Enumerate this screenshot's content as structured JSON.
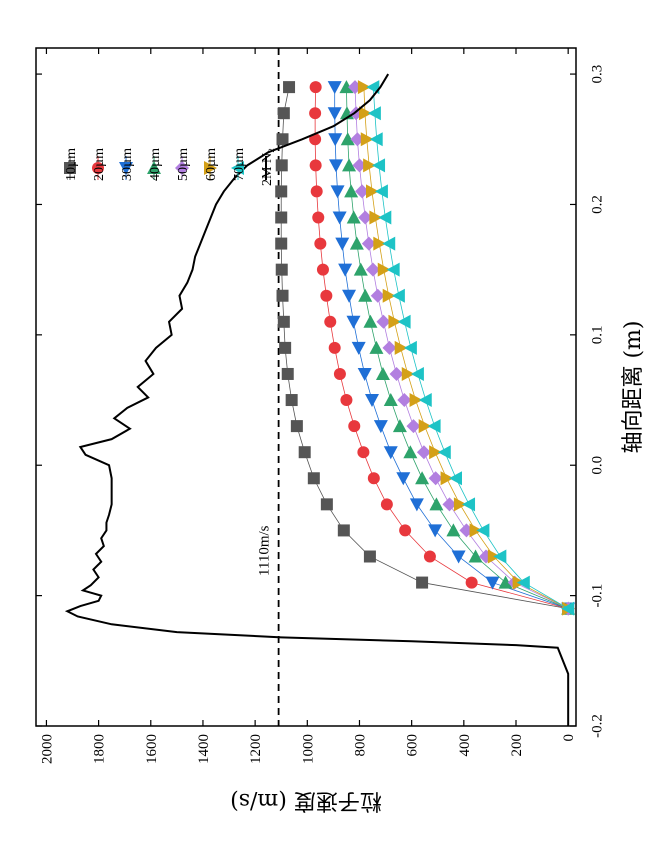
{
  "chart_data": {
    "type": "line",
    "orientation": "rotated-90-clockwise",
    "xlabel": "轴向距离 (m)",
    "ylabel": "粒子速度 (m/s)",
    "xlim": [
      -0.2,
      0.32
    ],
    "ylim": [
      -30,
      2040
    ],
    "xticks": [
      "-0.2",
      "-0.1",
      "0.0",
      "0.1",
      "0.2",
      "0.3"
    ],
    "yticks": [
      "0",
      "200",
      "400",
      "600",
      "800",
      "1000",
      "1200",
      "1400",
      "1600",
      "1800",
      "2000"
    ],
    "grid": false,
    "legend_position": "top-right",
    "reference_line": {
      "y": 1110,
      "label": "1110m/s",
      "style": "dashed"
    },
    "colors": {
      "10µm": "#555555",
      "20µm": "#e8383d",
      "30µm": "#1f6fd6",
      "40µm": "#2ea36b",
      "50µm": "#b27fe0",
      "60µm": "#d4a017",
      "70µm": "#1dc3c6",
      "gas": "#000000"
    },
    "series": [
      {
        "name": "10µm",
        "marker": "square",
        "x": [
          -0.11,
          -0.09,
          -0.07,
          -0.05,
          -0.03,
          -0.01,
          0.01,
          0.03,
          0.05,
          0.07,
          0.09,
          0.11,
          0.13,
          0.15,
          0.17,
          0.19,
          0.21,
          0.23,
          0.25,
          0.27,
          0.29
        ],
        "y": [
          0,
          560,
          760,
          860,
          925,
          975,
          1010,
          1040,
          1060,
          1075,
          1085,
          1090,
          1095,
          1098,
          1100,
          1100,
          1100,
          1098,
          1095,
          1090,
          1070
        ]
      },
      {
        "name": "20µm",
        "marker": "circle",
        "x": [
          -0.11,
          -0.09,
          -0.07,
          -0.05,
          -0.03,
          -0.01,
          0.01,
          0.03,
          0.05,
          0.07,
          0.09,
          0.11,
          0.13,
          0.15,
          0.17,
          0.19,
          0.21,
          0.23,
          0.25,
          0.27,
          0.29
        ],
        "y": [
          0,
          370,
          530,
          625,
          695,
          745,
          785,
          820,
          850,
          875,
          895,
          912,
          927,
          940,
          950,
          958,
          964,
          968,
          970,
          970,
          968
        ]
      },
      {
        "name": "30µm",
        "marker": "triangle-left",
        "x": [
          -0.11,
          -0.09,
          -0.07,
          -0.05,
          -0.03,
          -0.01,
          0.01,
          0.03,
          0.05,
          0.07,
          0.09,
          0.11,
          0.13,
          0.15,
          0.17,
          0.19,
          0.21,
          0.23,
          0.25,
          0.27,
          0.29
        ],
        "y": [
          0,
          290,
          420,
          510,
          580,
          632,
          680,
          718,
          752,
          780,
          803,
          823,
          840,
          855,
          866,
          876,
          884,
          890,
          893,
          895,
          895
        ]
      },
      {
        "name": "40µm",
        "marker": "triangle-right",
        "x": [
          -0.11,
          -0.09,
          -0.07,
          -0.05,
          -0.03,
          -0.01,
          0.01,
          0.03,
          0.05,
          0.07,
          0.09,
          0.11,
          0.13,
          0.15,
          0.17,
          0.19,
          0.21,
          0.23,
          0.25,
          0.27,
          0.29
        ],
        "y": [
          0,
          240,
          355,
          440,
          505,
          560,
          605,
          645,
          680,
          710,
          735,
          758,
          778,
          795,
          810,
          822,
          832,
          840,
          845,
          848,
          850
        ]
      },
      {
        "name": "50µm",
        "marker": "diamond",
        "x": [
          -0.11,
          -0.09,
          -0.07,
          -0.05,
          -0.03,
          -0.01,
          0.01,
          0.03,
          0.05,
          0.07,
          0.09,
          0.11,
          0.13,
          0.15,
          0.17,
          0.19,
          0.21,
          0.23,
          0.25,
          0.27,
          0.29
        ],
        "y": [
          0,
          205,
          315,
          390,
          455,
          508,
          553,
          593,
          628,
          658,
          685,
          708,
          730,
          748,
          764,
          778,
          790,
          800,
          808,
          813,
          817
        ]
      },
      {
        "name": "60µm",
        "marker": "triangle-down",
        "x": [
          -0.11,
          -0.09,
          -0.07,
          -0.05,
          -0.03,
          -0.01,
          0.01,
          0.03,
          0.05,
          0.07,
          0.09,
          0.11,
          0.13,
          0.15,
          0.17,
          0.19,
          0.21,
          0.23,
          0.25,
          0.27,
          0.29
        ],
        "y": [
          0,
          190,
          285,
          355,
          415,
          466,
          510,
          550,
          585,
          615,
          642,
          666,
          688,
          707,
          724,
          739,
          752,
          763,
          772,
          779,
          783
        ]
      },
      {
        "name": "70µm",
        "marker": "triangle-up",
        "x": [
          -0.11,
          -0.09,
          -0.07,
          -0.05,
          -0.03,
          -0.01,
          0.01,
          0.03,
          0.05,
          0.07,
          0.09,
          0.11,
          0.13,
          0.15,
          0.17,
          0.19,
          0.21,
          0.23,
          0.25,
          0.27,
          0.29
        ],
        "y": [
          0,
          170,
          260,
          325,
          380,
          430,
          473,
          512,
          546,
          576,
          603,
          627,
          649,
          669,
          686,
          701,
          714,
          725,
          734,
          741,
          747
        ]
      },
      {
        "name": "2M N₂",
        "marker": "none",
        "x": [
          -0.2,
          -0.16,
          -0.14,
          -0.138,
          -0.135,
          -0.132,
          -0.128,
          -0.122,
          -0.116,
          -0.112,
          -0.108,
          -0.104,
          -0.1,
          -0.096,
          -0.092,
          -0.086,
          -0.08,
          -0.074,
          -0.068,
          -0.062,
          -0.056,
          -0.05,
          -0.044,
          -0.038,
          -0.03,
          -0.02,
          -0.01,
          0.0,
          0.008,
          0.014,
          0.02,
          0.028,
          0.036,
          0.044,
          0.052,
          0.06,
          0.07,
          0.08,
          0.09,
          0.1,
          0.11,
          0.12,
          0.13,
          0.14,
          0.15,
          0.16,
          0.17,
          0.18,
          0.19,
          0.2,
          0.21,
          0.22,
          0.23,
          0.24,
          0.25,
          0.26,
          0.27,
          0.28,
          0.29,
          0.3
        ],
        "y": [
          0,
          0,
          40,
          200,
          600,
          1100,
          1500,
          1750,
          1880,
          1920,
          1870,
          1800,
          1790,
          1860,
          1830,
          1800,
          1820,
          1790,
          1810,
          1780,
          1790,
          1770,
          1770,
          1760,
          1750,
          1750,
          1750,
          1760,
          1850,
          1870,
          1750,
          1680,
          1740,
          1690,
          1610,
          1650,
          1590,
          1620,
          1580,
          1520,
          1530,
          1480,
          1490,
          1460,
          1440,
          1430,
          1410,
          1390,
          1370,
          1350,
          1320,
          1280,
          1230,
          1150,
          1020,
          900,
          820,
          760,
          720,
          690
        ]
      }
    ]
  }
}
